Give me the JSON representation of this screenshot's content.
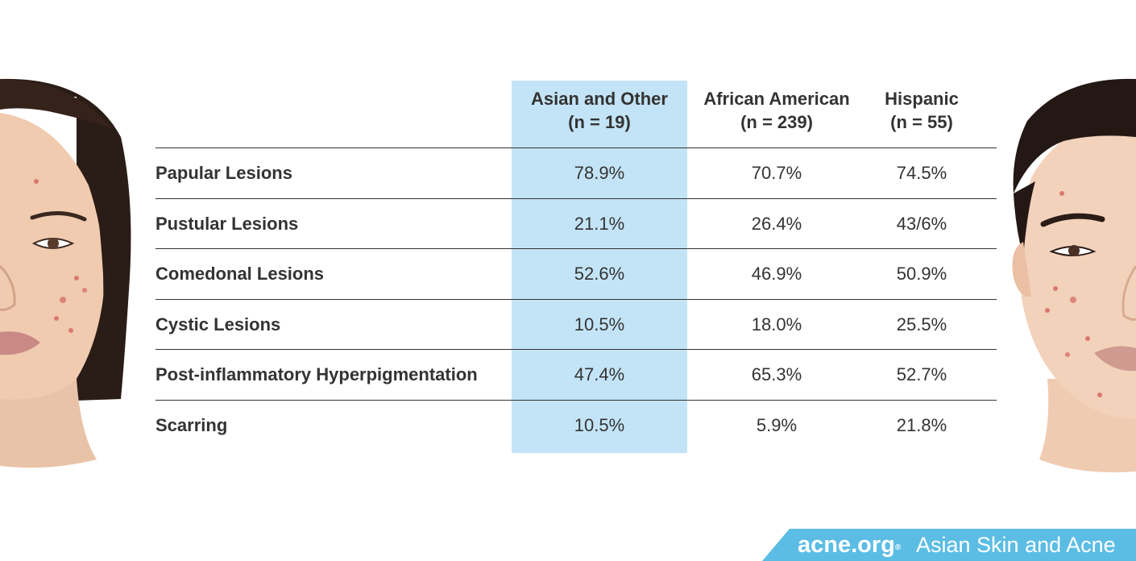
{
  "chart_data": {
    "type": "table",
    "columns": [
      {
        "name": "Asian and Other",
        "n": "(n = 19)"
      },
      {
        "name": "African American",
        "n": "(n = 239)"
      },
      {
        "name": "Hispanic",
        "n": "(n = 55)"
      }
    ],
    "rows": [
      {
        "label": "Papular Lesions",
        "values": [
          "78.9%",
          "70.7%",
          "74.5%"
        ]
      },
      {
        "label": "Pustular Lesions",
        "values": [
          "21.1%",
          "26.4%",
          "43/6%"
        ]
      },
      {
        "label": "Comedonal Lesions",
        "values": [
          "52.6%",
          "46.9%",
          "50.9%"
        ]
      },
      {
        "label": "Cystic Lesions",
        "values": [
          "10.5%",
          "18.0%",
          "25.5%"
        ]
      },
      {
        "label": "Post-inflammatory Hyperpigmentation",
        "values": [
          "47.4%",
          "65.3%",
          "52.7%"
        ]
      },
      {
        "label": "Scarring",
        "values": [
          "10.5%",
          "5.9%",
          "21.8%"
        ]
      }
    ],
    "highlight_column": 0,
    "highlight_color": "#c3e4f6"
  },
  "banner": {
    "logo": "acne.org",
    "logo_mark": "®",
    "title": "Asian Skin and Acne",
    "color": "#5bbde4"
  },
  "illustrations": {
    "left": "woman-face-with-acne",
    "right": "man-face-with-acne"
  }
}
